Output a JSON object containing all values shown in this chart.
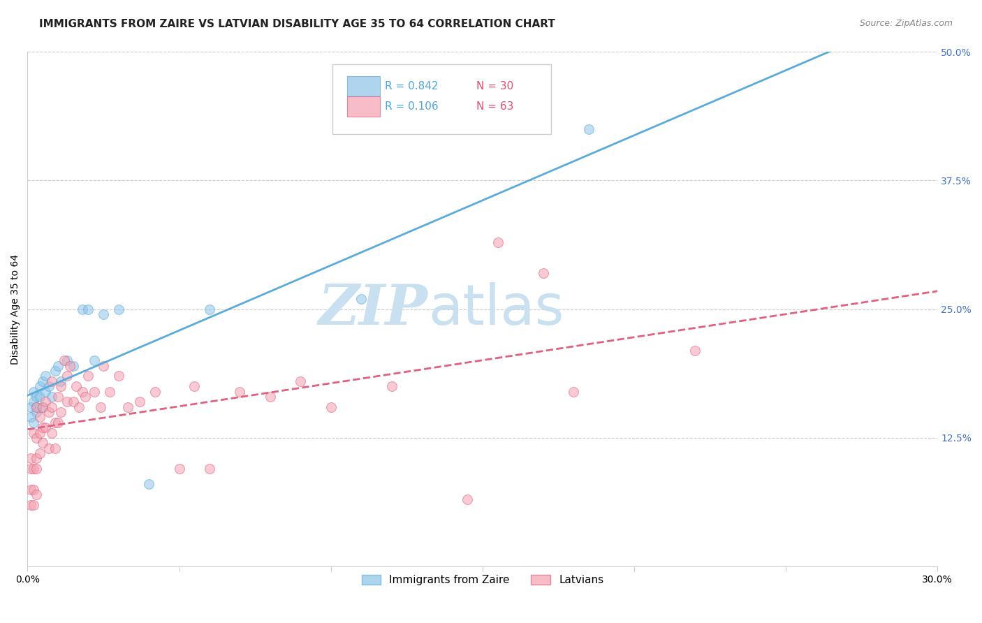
{
  "title": "IMMIGRANTS FROM ZAIRE VS LATVIAN DISABILITY AGE 35 TO 64 CORRELATION CHART",
  "source": "Source: ZipAtlas.com",
  "ylabel_label": "Disability Age 35 to 64",
  "xlim": [
    0.0,
    0.3
  ],
  "ylim": [
    0.0,
    0.5
  ],
  "xticks": [
    0.0,
    0.05,
    0.1,
    0.15,
    0.2,
    0.25,
    0.3
  ],
  "xticklabels": [
    "0.0%",
    "",
    "",
    "",
    "",
    "",
    "30.0%"
  ],
  "yticks_left": [
    0.0,
    0.125,
    0.25,
    0.375,
    0.5
  ],
  "yticklabels_left": [
    "",
    "",
    "",
    "",
    ""
  ],
  "yticks_right": [
    0.0,
    0.125,
    0.25,
    0.375,
    0.5
  ],
  "yticklabels_right": [
    "",
    "12.5%",
    "25.0%",
    "37.5%",
    "50.0%"
  ],
  "grid_color": "#cccccc",
  "background_color": "#ffffff",
  "watermark_zip": "ZIP",
  "watermark_atlas": "atlas",
  "watermark_color": "#c8e0f0",
  "series": [
    {
      "name": "Immigrants from Zaire",
      "R": "0.842",
      "N": "30",
      "color": "#8ec4e8",
      "edge_color": "#5aaada",
      "trend_color": "#5aaada",
      "trend_style": "-",
      "x": [
        0.001,
        0.001,
        0.002,
        0.002,
        0.002,
        0.003,
        0.003,
        0.003,
        0.004,
        0.004,
        0.005,
        0.005,
        0.006,
        0.006,
        0.007,
        0.008,
        0.009,
        0.01,
        0.011,
        0.013,
        0.015,
        0.018,
        0.02,
        0.022,
        0.025,
        0.03,
        0.04,
        0.06,
        0.11,
        0.185
      ],
      "y": [
        0.155,
        0.145,
        0.16,
        0.14,
        0.17,
        0.155,
        0.165,
        0.15,
        0.175,
        0.165,
        0.155,
        0.18,
        0.17,
        0.185,
        0.175,
        0.165,
        0.19,
        0.195,
        0.18,
        0.2,
        0.195,
        0.25,
        0.25,
        0.2,
        0.245,
        0.25,
        0.08,
        0.25,
        0.26,
        0.425
      ]
    },
    {
      "name": "Latvians",
      "R": "0.106",
      "N": "63",
      "color": "#f4a0b0",
      "edge_color": "#e06080",
      "trend_color": "#e06080",
      "trend_style": "--",
      "x": [
        0.001,
        0.001,
        0.001,
        0.001,
        0.002,
        0.002,
        0.002,
        0.002,
        0.003,
        0.003,
        0.003,
        0.003,
        0.003,
        0.004,
        0.004,
        0.004,
        0.005,
        0.005,
        0.005,
        0.006,
        0.006,
        0.007,
        0.007,
        0.008,
        0.008,
        0.008,
        0.009,
        0.009,
        0.01,
        0.01,
        0.011,
        0.011,
        0.012,
        0.013,
        0.013,
        0.014,
        0.015,
        0.016,
        0.017,
        0.018,
        0.019,
        0.02,
        0.022,
        0.024,
        0.025,
        0.027,
        0.03,
        0.033,
        0.037,
        0.042,
        0.05,
        0.055,
        0.06,
        0.07,
        0.08,
        0.09,
        0.1,
        0.12,
        0.145,
        0.155,
        0.17,
        0.18,
        0.22
      ],
      "y": [
        0.095,
        0.105,
        0.075,
        0.06,
        0.13,
        0.095,
        0.075,
        0.06,
        0.155,
        0.125,
        0.105,
        0.095,
        0.07,
        0.145,
        0.13,
        0.11,
        0.155,
        0.135,
        0.12,
        0.16,
        0.135,
        0.15,
        0.115,
        0.18,
        0.155,
        0.13,
        0.14,
        0.115,
        0.165,
        0.14,
        0.175,
        0.15,
        0.2,
        0.185,
        0.16,
        0.195,
        0.16,
        0.175,
        0.155,
        0.17,
        0.165,
        0.185,
        0.17,
        0.155,
        0.195,
        0.17,
        0.185,
        0.155,
        0.16,
        0.17,
        0.095,
        0.175,
        0.095,
        0.17,
        0.165,
        0.18,
        0.155,
        0.175,
        0.065,
        0.315,
        0.285,
        0.17,
        0.21
      ]
    }
  ],
  "legend_R_color": "#4da6e0",
  "legend_N_color": "#e05070",
  "legend_R_values": [
    "0.842",
    "0.106"
  ],
  "legend_N_values": [
    "30",
    "63"
  ],
  "marker_size": 100,
  "marker_alpha": 0.55,
  "title_fontsize": 11,
  "axis_label_fontsize": 10,
  "tick_fontsize": 10,
  "tick_color_right": "#4472c4",
  "source_fontsize": 9,
  "trend_linewidth": 2.0
}
